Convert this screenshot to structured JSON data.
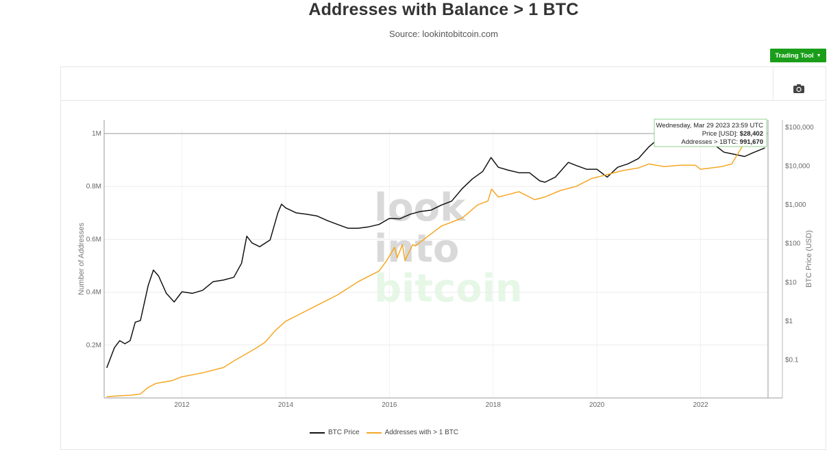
{
  "header": {
    "title": "Addresses with Balance > 1 BTC",
    "source": "Source: lookintobitcoin.com"
  },
  "toolbar": {
    "trading_tool_label": "Trading Tool",
    "camera_icon": "camera-icon"
  },
  "watermark": {
    "line1": "look",
    "line2": "into",
    "line3": "bitcoin"
  },
  "tooltip": {
    "date": "Wednesday, Mar 29 2023 23:59 UTC",
    "price_label": "Price [USD]: ",
    "price_value": "$28,402",
    "addr_label": "Addresses > 1BTC: ",
    "addr_value": "991,670"
  },
  "colors": {
    "btc_price": "#111111",
    "addresses": "#f5a623",
    "accent": "#1a9e1a"
  },
  "chart_data": {
    "type": "line",
    "title": "Addresses with Balance > 1 BTC",
    "ylabel": "Number of Addresses",
    "y2label": "BTC Price (USD)",
    "x_ticks": [
      "2012",
      "2014",
      "2016",
      "2018",
      "2020",
      "2022"
    ],
    "y_ticks": [
      "0.2M",
      "0.4M",
      "0.6M",
      "0.8M",
      "1M"
    ],
    "y2_ticks": [
      "$0.1",
      "$1",
      "$10",
      "$100",
      "$1,000",
      "$10,000",
      "$100,000"
    ],
    "xlim": [
      2010.5,
      2023.3
    ],
    "ylim": [
      0,
      1000000
    ],
    "y2_scale": "log",
    "y2lim": [
      0.01,
      100000
    ],
    "legend": "bottom",
    "grid": true,
    "series": [
      {
        "name": "BTC Price",
        "axis": "right",
        "x": [
          2010.55,
          2010.7,
          2010.8,
          2010.9,
          2011.0,
          2011.1,
          2011.2,
          2011.35,
          2011.45,
          2011.55,
          2011.7,
          2011.85,
          2012.0,
          2012.2,
          2012.4,
          2012.6,
          2012.8,
          2013.0,
          2013.15,
          2013.25,
          2013.35,
          2013.5,
          2013.7,
          2013.85,
          2013.92,
          2014.0,
          2014.2,
          2014.4,
          2014.6,
          2014.8,
          2015.0,
          2015.2,
          2015.4,
          2015.6,
          2015.8,
          2016.0,
          2016.2,
          2016.4,
          2016.6,
          2016.8,
          2017.0,
          2017.2,
          2017.4,
          2017.6,
          2017.8,
          2017.96,
          2018.1,
          2018.3,
          2018.5,
          2018.7,
          2018.9,
          2019.0,
          2019.2,
          2019.45,
          2019.6,
          2019.8,
          2020.0,
          2020.2,
          2020.4,
          2020.6,
          2020.8,
          2021.0,
          2021.25,
          2021.45,
          2021.6,
          2021.85,
          2022.0,
          2022.2,
          2022.45,
          2022.6,
          2022.85,
          2023.0,
          2023.24
        ],
        "y": [
          0.06,
          0.2,
          0.3,
          0.25,
          0.3,
          0.9,
          1.0,
          8.0,
          20.0,
          14.0,
          5.0,
          3.0,
          5.5,
          5.0,
          6.0,
          10.0,
          11.0,
          13.0,
          30.0,
          150.0,
          100.0,
          80.0,
          120.0,
          600.0,
          1000.0,
          800.0,
          600.0,
          550.0,
          500.0,
          380.0,
          300.0,
          240.0,
          240.0,
          260.0,
          300.0,
          430.0,
          420.0,
          550.0,
          650.0,
          700.0,
          950.0,
          1200.0,
          2500.0,
          4500.0,
          7000.0,
          16000.0,
          9000.0,
          7500.0,
          6500.0,
          6500.0,
          4000.0,
          3700.0,
          5000.0,
          12000.0,
          10000.0,
          8000.0,
          8000.0,
          5000.0,
          9000.0,
          11000.0,
          15000.0,
          30000.0,
          58000.0,
          35000.0,
          40000.0,
          65000.0,
          45000.0,
          40000.0,
          22000.0,
          20000.0,
          17000.0,
          21000.0,
          28402.0
        ]
      },
      {
        "name": "Addresses with > 1 BTC",
        "axis": "left",
        "x": [
          2010.55,
          2010.8,
          2011.0,
          2011.2,
          2011.35,
          2011.5,
          2011.8,
          2012.0,
          2012.4,
          2012.8,
          2013.0,
          2013.4,
          2013.6,
          2013.8,
          2014.0,
          2014.3,
          2014.6,
          2015.0,
          2015.4,
          2015.8,
          2015.95,
          2016.1,
          2016.15,
          2016.25,
          2016.3,
          2016.45,
          2016.5,
          2016.8,
          2017.0,
          2017.4,
          2017.7,
          2017.9,
          2017.97,
          2018.1,
          2018.3,
          2018.5,
          2018.8,
          2019.0,
          2019.3,
          2019.6,
          2019.9,
          2020.1,
          2020.3,
          2020.5,
          2020.8,
          2021.0,
          2021.3,
          2021.6,
          2021.9,
          2022.0,
          2022.2,
          2022.4,
          2022.6,
          2022.8,
          2023.0,
          2023.24
        ],
        "y": [
          5000,
          8000,
          10000,
          15000,
          40000,
          55000,
          65000,
          80000,
          95000,
          115000,
          140000,
          185000,
          210000,
          255000,
          290000,
          320000,
          350000,
          390000,
          440000,
          480000,
          520000,
          570000,
          530000,
          580000,
          520000,
          580000,
          575000,
          620000,
          650000,
          680000,
          730000,
          745000,
          790000,
          760000,
          770000,
          780000,
          750000,
          760000,
          785000,
          800000,
          830000,
          840000,
          850000,
          860000,
          870000,
          885000,
          875000,
          880000,
          880000,
          865000,
          870000,
          875000,
          885000,
          950000,
          985000,
          991670
        ]
      }
    ]
  },
  "legend": {
    "btc_price": "BTC Price",
    "addresses": "Addresses with > 1 BTC"
  }
}
